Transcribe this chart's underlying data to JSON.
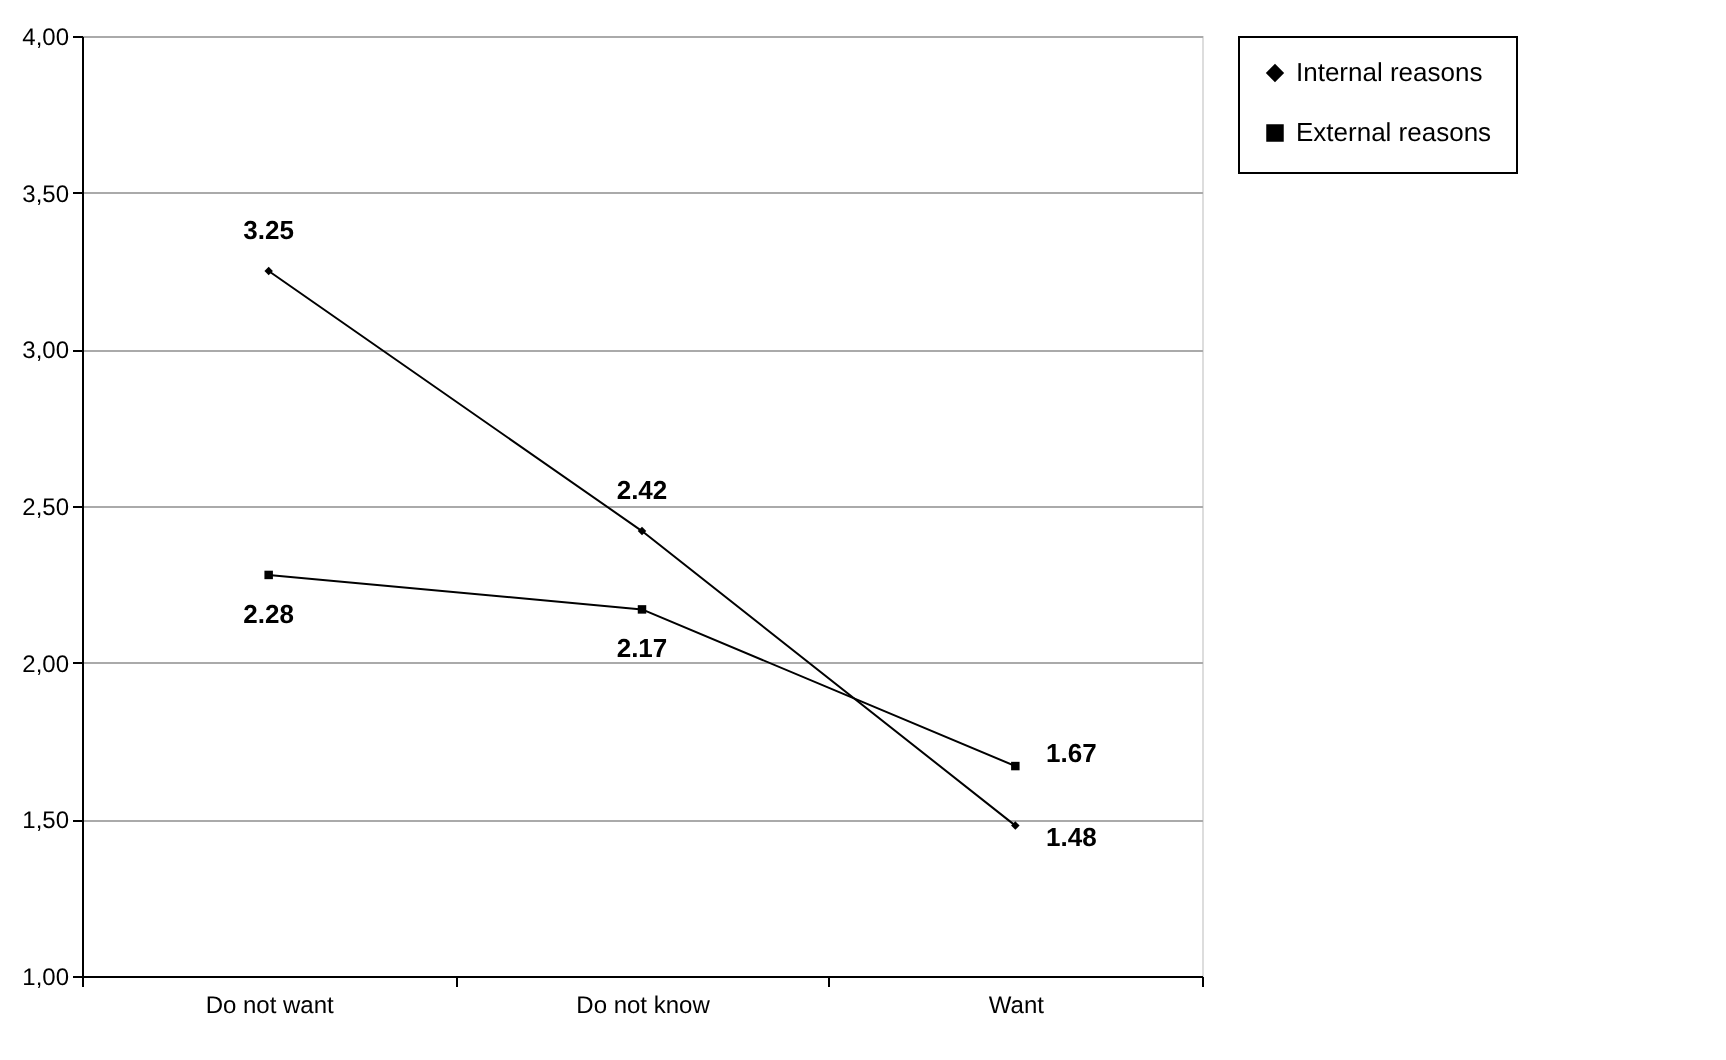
{
  "chart_data": {
    "type": "line",
    "categories": [
      "Do not want",
      "Do not know",
      "Want"
    ],
    "series": [
      {
        "name": "Internal reasons",
        "color": "#000000",
        "marker": "diamond",
        "values": [
          3.25,
          2.42,
          1.48
        ]
      },
      {
        "name": "External reasons",
        "color": "#000000",
        "marker": "square",
        "values": [
          2.28,
          2.17,
          1.67
        ]
      }
    ],
    "ylim": [
      1,
      4
    ],
    "yticks": [
      {
        "value": 1,
        "label": "1,00"
      },
      {
        "value": 1.5,
        "label": "1,50"
      },
      {
        "value": 2,
        "label": "2,00"
      },
      {
        "value": 2.5,
        "label": "2,50"
      },
      {
        "value": 3,
        "label": "3,00"
      },
      {
        "value": 3.5,
        "label": "3,50"
      },
      {
        "value": 4,
        "label": "4,00"
      }
    ],
    "grid": "y",
    "legend": "right",
    "data_labels": true,
    "line_style": "solid"
  }
}
